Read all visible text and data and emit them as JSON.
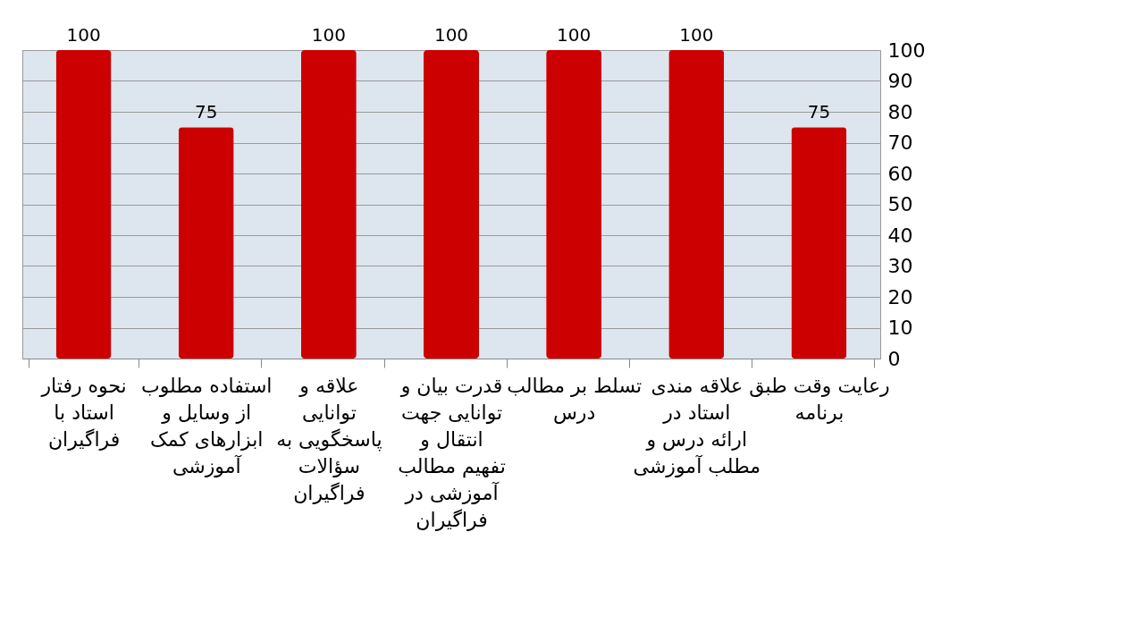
{
  "chart_data": {
    "type": "bar",
    "categories": [
      "نحوه رفتار استاد با فراگیران",
      "استفاده مطلوب از وسایل و ابزارهای کمک آموزشی",
      "علاقه و توانایی پاسخگویی به سؤالات فراگیران",
      "قدرت بیان و توانایی جهت انتقال و تفهیم مطالب آموزشی در فراگیران",
      "تسلط بر مطالب درس",
      "علاقه مندی استاد در ارائه درس و مطلب آموزشی",
      "رعایت وقت طبق برنامه"
    ],
    "values": [
      100,
      75,
      100,
      100,
      100,
      100,
      75
    ],
    "color": "#cc0000",
    "ylim": [
      0,
      100
    ],
    "yticks": [
      0,
      10,
      20,
      30,
      40,
      50,
      60,
      70,
      80,
      90,
      100
    ],
    "grid": "y",
    "data_labels": true
  }
}
